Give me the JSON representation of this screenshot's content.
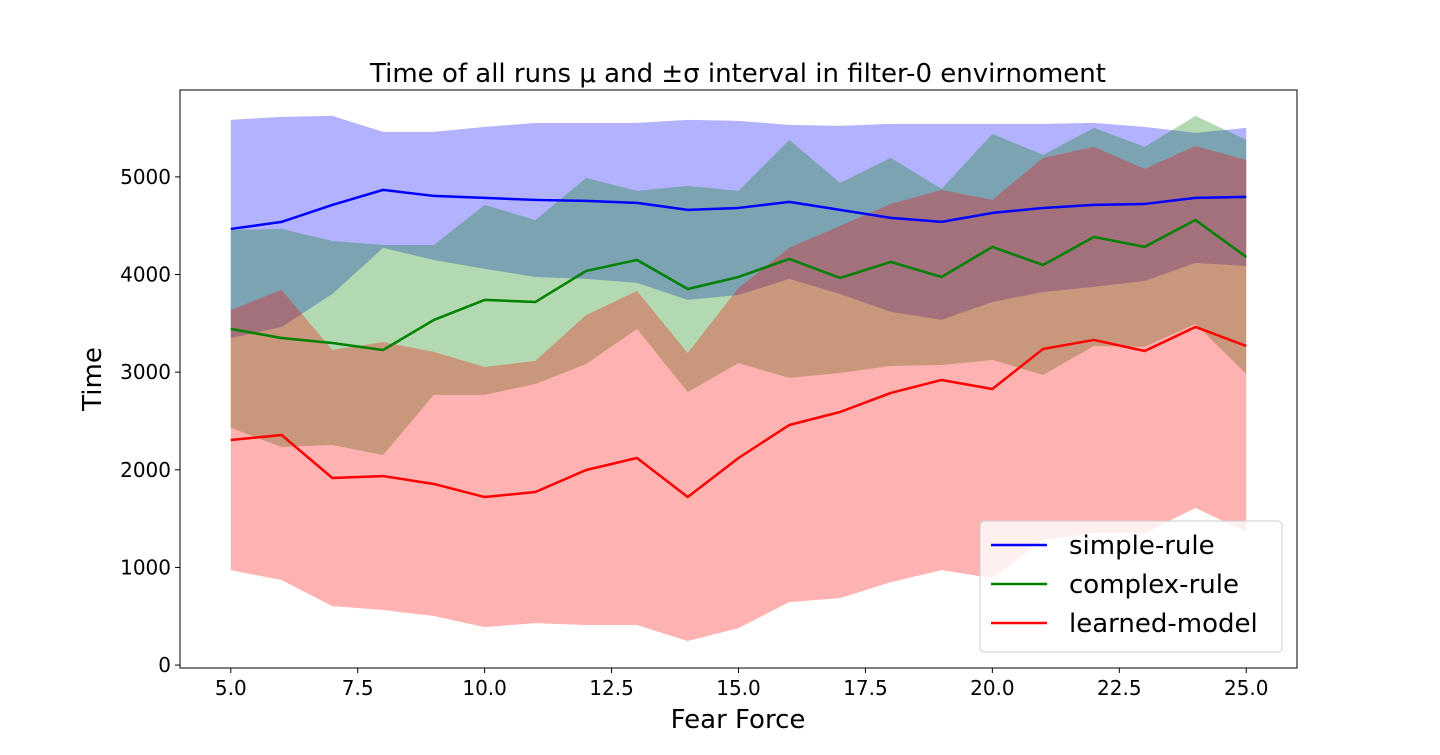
{
  "chart_data": {
    "type": "line",
    "title": "Time of all runs μ and ±σ interval in filter-0 envirnoment",
    "xlabel": "Fear Force",
    "ylabel": "Time",
    "xlim": [
      4.0,
      26.0
    ],
    "ylim": [
      -30,
      5890
    ],
    "xticks": [
      "5.0",
      "7.5",
      "10.0",
      "12.5",
      "15.0",
      "17.5",
      "20.0",
      "22.5",
      "25.0"
    ],
    "yticks": [
      "0",
      "1000",
      "2000",
      "3000",
      "4000",
      "5000"
    ],
    "grid": false,
    "legend_position": "lower-right",
    "band": "mean ± std",
    "x": [
      5,
      6,
      7,
      8,
      9,
      10,
      11,
      12,
      13,
      14,
      15,
      16,
      17,
      18,
      19,
      20,
      21,
      22,
      23,
      24,
      25
    ],
    "series": [
      {
        "name": "simple-rule",
        "color": "#0000ff",
        "mean": [
          4467,
          4539,
          4713,
          4867,
          4805,
          4785,
          4764,
          4754,
          4734,
          4662,
          4682,
          4744,
          4662,
          4580,
          4539,
          4631,
          4682,
          4713,
          4723,
          4785,
          4795
        ],
        "std": [
          1117,
          1076,
          912,
          594,
          656,
          727,
          789,
          799,
          819,
          922,
          892,
          789,
          861,
          963,
          1004,
          912,
          861,
          840,
          789,
          666,
          707
        ]
      },
      {
        "name": "complex-rule",
        "color": "#008000",
        "mean": [
          3443,
          3350,
          3299,
          3227,
          3535,
          3740,
          3719,
          4037,
          4150,
          3852,
          3975,
          4160,
          3965,
          4129,
          3975,
          4283,
          4098,
          4385,
          4283,
          4559,
          4180
        ],
        "std": [
          1014,
          1117,
          1045,
          1076,
          768,
          973,
          840,
          953,
          707,
          1056,
          882,
          1219,
          974,
          1066,
          902,
          1158,
          1127,
          1117,
          1024,
          1066,
          1199
        ]
      },
      {
        "name": "learned-model",
        "color": "#ff0000",
        "mean": [
          2305,
          2357,
          1916,
          1936,
          1855,
          1721,
          1773,
          1998,
          2121,
          1721,
          2121,
          2459,
          2592,
          2787,
          2920,
          2828,
          3238,
          3330,
          3217,
          3463,
          3268
        ],
        "std": [
          1332,
          1486,
          1312,
          1372,
          1353,
          1332,
          1343,
          1588,
          1711,
          1475,
          1742,
          1814,
          1906,
          1937,
          1947,
          1937,
          1957,
          1978,
          1865,
          1854,
          1905
        ]
      }
    ]
  }
}
